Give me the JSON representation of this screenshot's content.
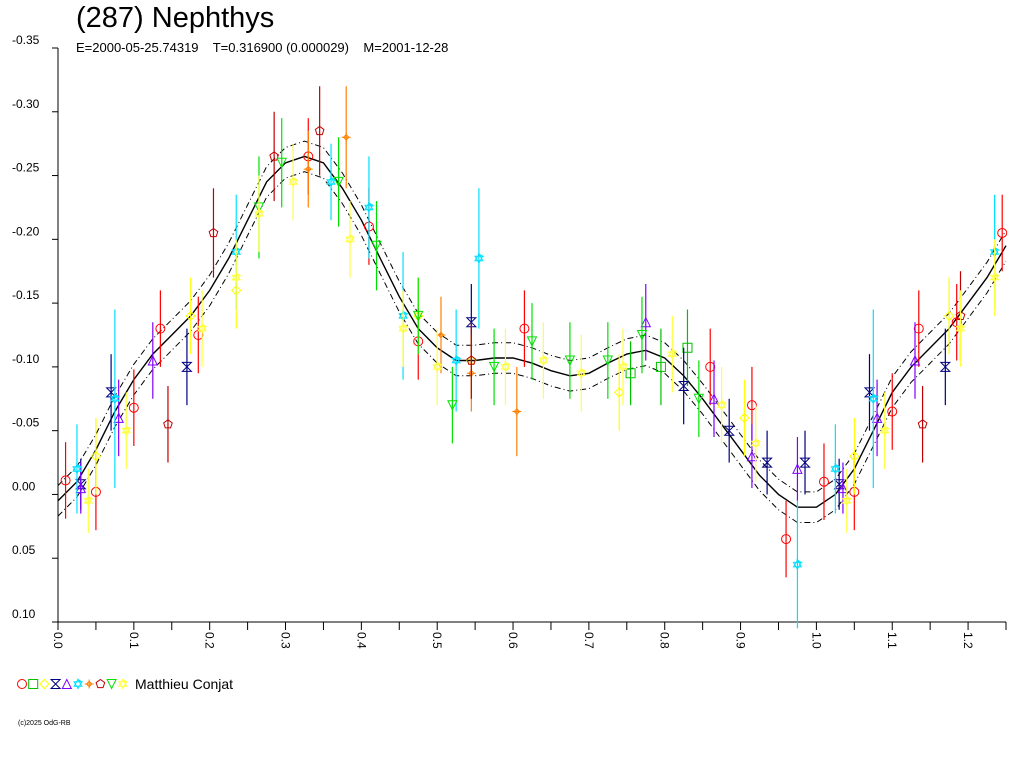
{
  "header": {
    "title": "(287) Nephthys",
    "subtitle": "E=2000-05-25.74319    T=0.316900 (0.000029)    M=2001-12-28"
  },
  "legend": {
    "observer": "Matthieu Conjat"
  },
  "footer": {
    "copyright": "(c)2025 OdG-RB"
  },
  "chart_data": {
    "type": "scatter",
    "title": "(287) Nephthys",
    "xlabel": "",
    "ylabel": "",
    "xlim": [
      0.0,
      1.25
    ],
    "ylim": [
      0.1,
      -0.35
    ],
    "x_ticks": [
      "0.0",
      "0.1",
      "0.2",
      "0.3",
      "0.4",
      "0.5",
      "0.6",
      "0.7",
      "0.8",
      "0.9",
      "1.0",
      "1.1",
      "1.2"
    ],
    "y_ticks": [
      "-0.35",
      "-0.30",
      "-0.25",
      "-0.20",
      "-0.15",
      "-0.10",
      "-0.05",
      "0.00",
      "0.05",
      "0.10"
    ],
    "grid": false,
    "fit": {
      "name": "fourier-fit",
      "x": [
        0.0,
        0.025,
        0.05,
        0.075,
        0.1,
        0.125,
        0.15,
        0.175,
        0.2,
        0.225,
        0.25,
        0.275,
        0.3,
        0.325,
        0.35,
        0.375,
        0.4,
        0.425,
        0.45,
        0.475,
        0.5,
        0.525,
        0.55,
        0.575,
        0.6,
        0.625,
        0.65,
        0.675,
        0.7,
        0.725,
        0.75,
        0.775,
        0.8,
        0.825,
        0.85,
        0.875,
        0.9,
        0.925,
        0.95,
        0.975,
        1.0,
        1.025,
        1.05,
        1.075,
        1.1,
        1.125,
        1.15,
        1.175,
        1.2,
        1.225,
        1.25
      ],
      "y": [
        0.005,
        -0.01,
        -0.035,
        -0.065,
        -0.09,
        -0.11,
        -0.125,
        -0.14,
        -0.16,
        -0.185,
        -0.215,
        -0.245,
        -0.26,
        -0.265,
        -0.26,
        -0.24,
        -0.215,
        -0.185,
        -0.155,
        -0.13,
        -0.115,
        -0.105,
        -0.105,
        -0.107,
        -0.107,
        -0.103,
        -0.097,
        -0.093,
        -0.095,
        -0.103,
        -0.11,
        -0.113,
        -0.107,
        -0.093,
        -0.075,
        -0.055,
        -0.035,
        -0.015,
        0.0,
        0.01,
        0.01,
        0.0,
        -0.02,
        -0.05,
        -0.08,
        -0.1,
        -0.115,
        -0.13,
        -0.15,
        -0.17,
        -0.195
      ],
      "band": 0.012
    },
    "series": [
      {
        "color": "#ff0000",
        "marker": "circle",
        "x": [
          0.01,
          0.05,
          0.1,
          0.135,
          0.185,
          0.33,
          0.41,
          0.475,
          0.615,
          0.86,
          0.915,
          0.96,
          1.01,
          1.05,
          1.1,
          1.135,
          1.185,
          1.245
        ],
        "y": [
          -0.011,
          -0.002,
          -0.068,
          -0.13,
          -0.125,
          -0.265,
          -0.21,
          -0.12,
          -0.13,
          -0.1,
          -0.07,
          0.035,
          -0.01,
          -0.002,
          -0.065,
          -0.13,
          -0.135,
          -0.205
        ],
        "err": [
          0.03,
          0.03,
          0.03,
          0.03,
          0.03,
          0.03,
          0.03,
          0.03,
          0.03,
          0.03,
          0.03,
          0.03,
          0.03,
          0.03,
          0.03,
          0.03,
          0.03,
          0.03
        ]
      },
      {
        "color": "#00c000",
        "marker": "square",
        "x": [
          0.755,
          0.795,
          0.83
        ],
        "y": [
          -0.095,
          -0.1,
          -0.115
        ],
        "err": [
          0.025,
          0.03,
          0.03
        ]
      },
      {
        "color": "#ffff00",
        "marker": "diamond",
        "x": [
          0.05,
          0.175,
          0.235,
          0.475,
          0.545,
          0.74,
          0.905,
          1.05,
          1.175
        ],
        "y": [
          -0.03,
          -0.14,
          -0.16,
          -0.14,
          -0.105,
          -0.08,
          -0.06,
          -0.03,
          -0.14
        ],
        "err": [
          0.03,
          0.03,
          0.03,
          0.03,
          0.03,
          0.03,
          0.03,
          0.03,
          0.03
        ]
      },
      {
        "color": "#000080",
        "marker": "hourglass",
        "x": [
          0.03,
          0.07,
          0.17,
          0.545,
          0.825,
          0.885,
          0.935,
          0.985,
          1.03,
          1.07,
          1.17
        ],
        "y": [
          -0.008,
          -0.08,
          -0.1,
          -0.135,
          -0.085,
          -0.05,
          -0.025,
          -0.025,
          -0.008,
          -0.08,
          -0.1
        ],
        "err": [
          0.02,
          0.03,
          0.03,
          0.03,
          0.03,
          0.025,
          0.025,
          0.025,
          0.02,
          0.03,
          0.03
        ]
      },
      {
        "color": "#8000ff",
        "marker": "triangle",
        "x": [
          0.03,
          0.08,
          0.125,
          0.775,
          0.865,
          0.915,
          0.975,
          1.035,
          1.08,
          1.13
        ],
        "y": [
          -0.005,
          -0.06,
          -0.105,
          -0.135,
          -0.075,
          -0.03,
          -0.02,
          -0.005,
          -0.06,
          -0.105
        ],
        "err": [
          0.02,
          0.03,
          0.03,
          0.03,
          0.03,
          0.025,
          0.025,
          0.02,
          0.03,
          0.03
        ]
      },
      {
        "color": "#00e0ff",
        "marker": "star",
        "x": [
          0.025,
          0.075,
          0.235,
          0.36,
          0.41,
          0.455,
          0.525,
          0.555,
          0.975,
          1.025,
          1.075,
          1.235
        ],
        "y": [
          -0.02,
          -0.075,
          -0.19,
          -0.245,
          -0.225,
          -0.14,
          -0.105,
          -0.185,
          0.055,
          -0.02,
          -0.075,
          -0.19
        ],
        "err": [
          0.035,
          0.07,
          0.045,
          0.03,
          0.04,
          0.05,
          0.04,
          0.055,
          0.05,
          0.035,
          0.07,
          0.045
        ]
      },
      {
        "color": "#ff8000",
        "marker": "cross",
        "x": [
          0.33,
          0.38,
          0.505,
          0.545,
          0.605
        ],
        "y": [
          -0.255,
          -0.28,
          -0.125,
          -0.095,
          -0.065
        ],
        "err": [
          0.03,
          0.04,
          0.03,
          0.03,
          0.035
        ]
      },
      {
        "color": "#c00000",
        "marker": "pentagon",
        "x": [
          0.145,
          0.205,
          0.285,
          0.345,
          0.545,
          1.14,
          1.19
        ],
        "y": [
          -0.055,
          -0.205,
          -0.265,
          -0.285,
          -0.105,
          -0.055,
          -0.14
        ],
        "err": [
          0.03,
          0.035,
          0.035,
          0.035,
          0.03,
          0.03,
          0.035
        ]
      },
      {
        "color": "#00e000",
        "marker": "triangle-down",
        "x": [
          0.265,
          0.295,
          0.37,
          0.42,
          0.475,
          0.52,
          0.575,
          0.625,
          0.675,
          0.725,
          0.77,
          0.845
        ],
        "y": [
          -0.225,
          -0.26,
          -0.245,
          -0.195,
          -0.14,
          -0.07,
          -0.1,
          -0.12,
          -0.105,
          -0.105,
          -0.125,
          -0.075
        ],
        "err": [
          0.04,
          0.035,
          0.035,
          0.035,
          0.03,
          0.03,
          0.03,
          0.03,
          0.03,
          0.03,
          0.03,
          0.03
        ]
      },
      {
        "color": "#ffff40",
        "marker": "star",
        "x": [
          0.04,
          0.09,
          0.19,
          0.235,
          0.265,
          0.31,
          0.385,
          0.455,
          0.5,
          0.59,
          0.64,
          0.69,
          0.745,
          0.81,
          0.875,
          0.92,
          1.04,
          1.09,
          1.19,
          1.235
        ],
        "y": [
          0.005,
          -0.05,
          -0.13,
          -0.17,
          -0.22,
          -0.245,
          -0.2,
          -0.13,
          -0.1,
          -0.1,
          -0.105,
          -0.095,
          -0.1,
          -0.11,
          -0.07,
          -0.04,
          0.005,
          -0.05,
          -0.13,
          -0.17
        ],
        "err": [
          0.025,
          0.03,
          0.03,
          0.03,
          0.03,
          0.03,
          0.03,
          0.03,
          0.03,
          0.03,
          0.03,
          0.03,
          0.03,
          0.03,
          0.03,
          0.03,
          0.025,
          0.03,
          0.03,
          0.03
        ]
      }
    ]
  }
}
